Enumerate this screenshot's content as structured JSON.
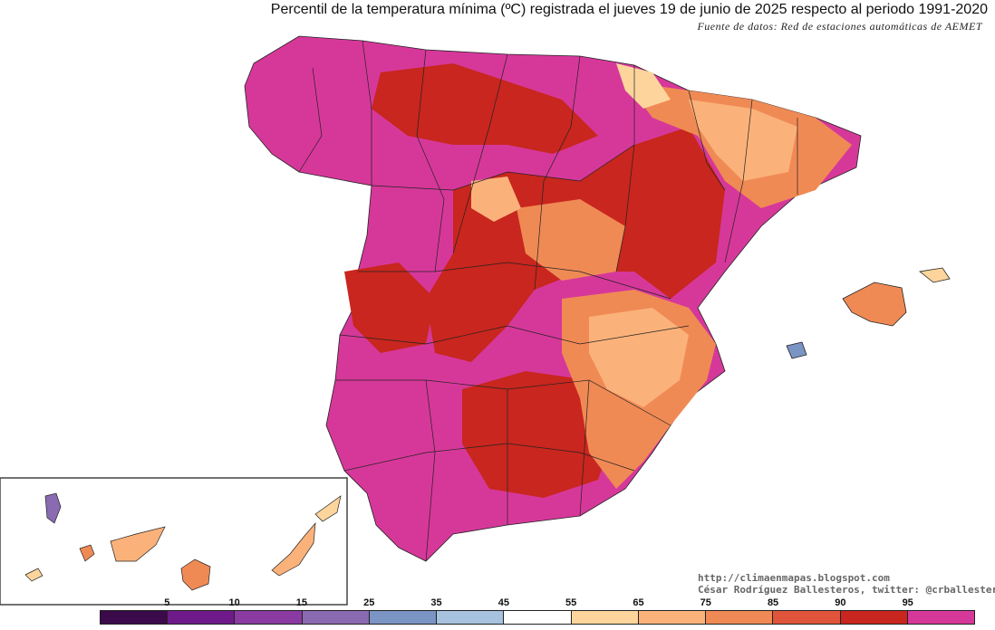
{
  "title": "Percentil de la temperatura mínima (ºC) registrada el jueves 19 de junio de 2025 respecto al periodo 1991-2020",
  "source": "Fuente de datos: Red de estaciones automáticas de AEMET",
  "credits": {
    "blog": "http://climaenmapas.blogspot.com",
    "author": "César Rodríguez Ballesteros, twitter: @crballesteros"
  },
  "legend": {
    "ticks": [
      "5",
      "10",
      "15",
      "25",
      "35",
      "45",
      "55",
      "65",
      "75",
      "85",
      "90",
      "95"
    ],
    "colors": [
      "#3a0a4a",
      "#6e1a8a",
      "#8a3aa0",
      "#8a6ab0",
      "#7a94c4",
      "#a6c2de",
      "#ffffff",
      "#fdd59c",
      "#fbb27a",
      "#f08a55",
      "#e0543c",
      "#c8261e",
      "#d6389a"
    ]
  }
}
